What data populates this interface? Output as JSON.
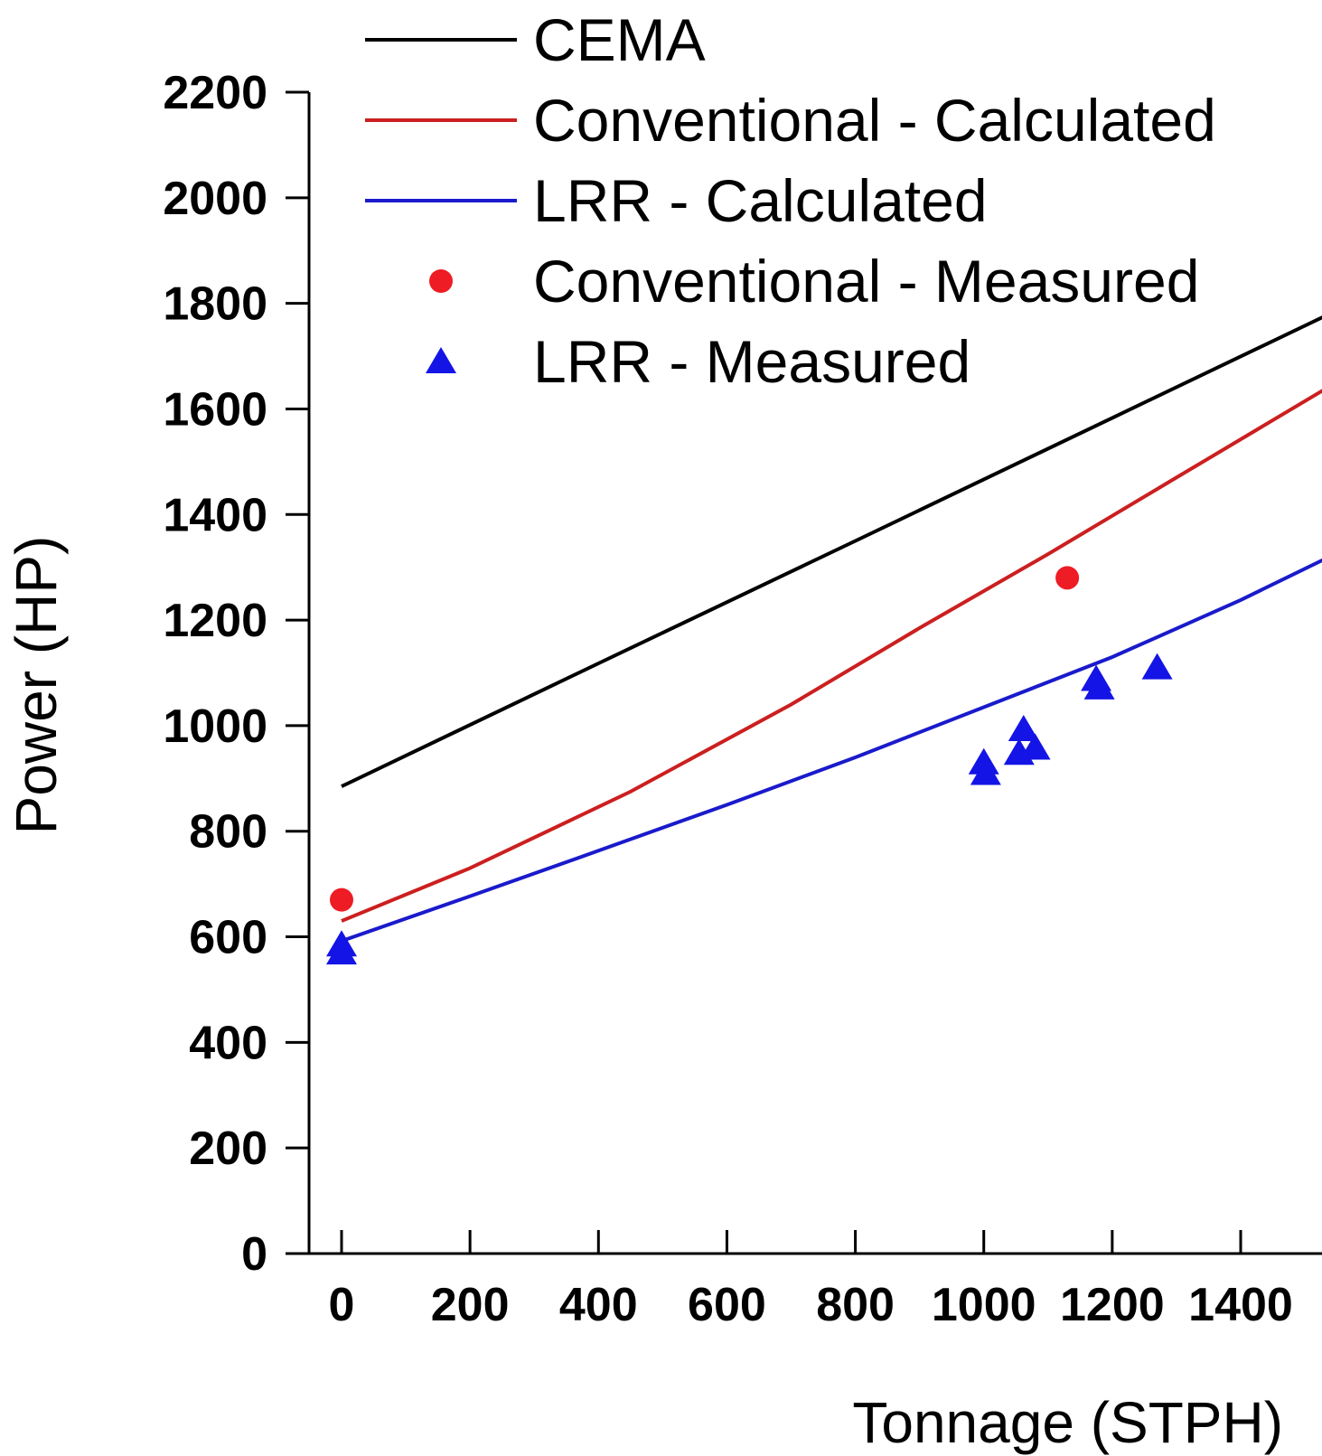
{
  "chart_data": {
    "type": "line",
    "xlabel": "Tonnage (STPH)",
    "ylabel": "Power (HP)",
    "xlim": [
      -55,
      1535
    ],
    "ylim": [
      0,
      2200
    ],
    "x_ticks": [
      0,
      200,
      400,
      600,
      800,
      1000,
      1200,
      1400
    ],
    "x_tick_labels": [
      "0",
      "200",
      "400",
      "600",
      "800",
      "1000",
      "1200",
      "1400"
    ],
    "y_ticks": [
      0,
      200,
      400,
      600,
      800,
      1000,
      1200,
      1400,
      1600,
      1800,
      2000,
      2200
    ],
    "y_tick_labels": [
      "0",
      "200",
      "400",
      "600",
      "800",
      "1000",
      "1200",
      "1400",
      "1600",
      "1800",
      "2000",
      "2200"
    ],
    "grid": false,
    "legend_position": "top",
    "series": [
      {
        "name": "CEMA",
        "kind": "line",
        "color": "#000000",
        "points": [
          [
            0,
            885
          ],
          [
            400,
            1118
          ],
          [
            800,
            1350
          ],
          [
            1200,
            1583
          ],
          [
            1535,
            1778
          ]
        ]
      },
      {
        "name": "Conventional - Calculated",
        "kind": "line",
        "color": "#cc1f1f",
        "points": [
          [
            0,
            630
          ],
          [
            200,
            730
          ],
          [
            450,
            875
          ],
          [
            700,
            1040
          ],
          [
            900,
            1185
          ],
          [
            1100,
            1325
          ],
          [
            1300,
            1470
          ],
          [
            1535,
            1640
          ]
        ]
      },
      {
        "name": "LRR - Calculated",
        "kind": "line",
        "color": "#1a1acc",
        "points": [
          [
            0,
            592
          ],
          [
            200,
            677
          ],
          [
            400,
            763
          ],
          [
            600,
            850
          ],
          [
            800,
            940
          ],
          [
            1000,
            1035
          ],
          [
            1200,
            1130
          ],
          [
            1400,
            1238
          ],
          [
            1535,
            1318
          ]
        ]
      },
      {
        "name": "Conventional - Measured",
        "kind": "marker",
        "marker": "circle",
        "color": "#ee1c24",
        "points": [
          [
            0,
            670
          ],
          [
            1130,
            1280
          ]
        ]
      },
      {
        "name": "LRR - Measured",
        "kind": "marker",
        "marker": "triangle",
        "color": "#1414e6",
        "points": [
          [
            0,
            585
          ],
          [
            0,
            570
          ],
          [
            1000,
            930
          ],
          [
            1003,
            910
          ],
          [
            1055,
            948
          ],
          [
            1062,
            993
          ],
          [
            1080,
            958
          ],
          [
            1175,
            1088
          ],
          [
            1180,
            1072
          ],
          [
            1270,
            1110
          ]
        ]
      }
    ]
  }
}
